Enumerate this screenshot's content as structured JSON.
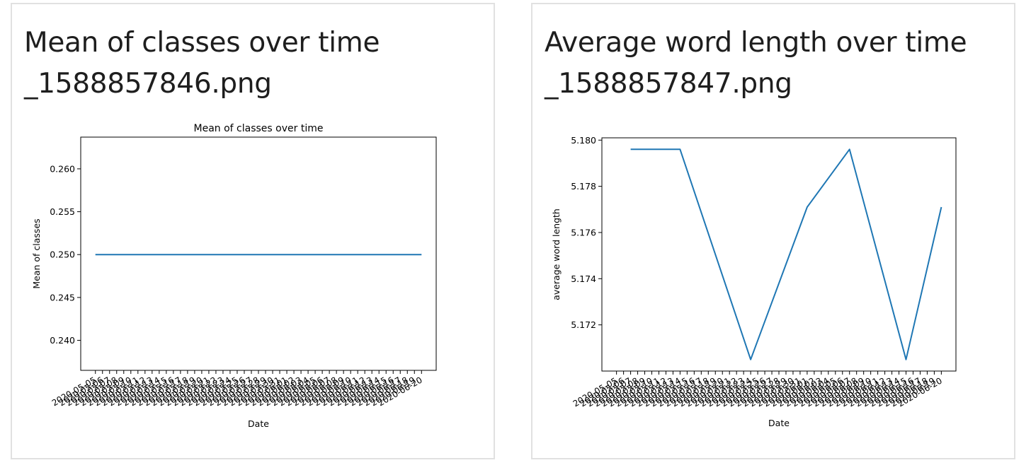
{
  "cards": [
    {
      "title_line1": "Mean of classes over time",
      "title_line2": "_1588857846.png"
    },
    {
      "title_line1": "Average word length over time",
      "title_line2": "_1588857847.png"
    }
  ],
  "chart_data": [
    {
      "type": "line",
      "title": "Mean of classes over time",
      "xlabel": "Date",
      "ylabel": "Mean of classes",
      "x_first": "2020-05-05",
      "x_last": "2020-06-20",
      "x_count": 47,
      "y_ticks": [
        0.24,
        0.245,
        0.25,
        0.255,
        0.26
      ],
      "ylim": [
        0.2365,
        0.2637
      ],
      "grid": false,
      "series": [
        {
          "color": "#1f77b4",
          "constant_value": 0.25
        }
      ]
    },
    {
      "type": "line",
      "title": "",
      "xlabel": "Date",
      "ylabel": "average word length",
      "x_first": "2020-05-05",
      "x_last": "2020-06-20",
      "x_count": 47,
      "y_ticks": [
        5.172,
        5.174,
        5.176,
        5.178,
        5.18
      ],
      "ylim": [
        5.17,
        5.1801
      ],
      "grid": false,
      "series": [
        {
          "color": "#1f77b4",
          "points": [
            {
              "x": "2020-05-07",
              "y": 5.1796
            },
            {
              "x": "2020-05-14",
              "y": 5.1796
            },
            {
              "x": "2020-05-24",
              "y": 5.1705
            },
            {
              "x": "2020-06-01",
              "y": 5.1771
            },
            {
              "x": "2020-06-07",
              "y": 5.1796
            },
            {
              "x": "2020-06-15",
              "y": 5.1705
            },
            {
              "x": "2020-06-20",
              "y": 5.1771
            }
          ]
        }
      ]
    }
  ]
}
